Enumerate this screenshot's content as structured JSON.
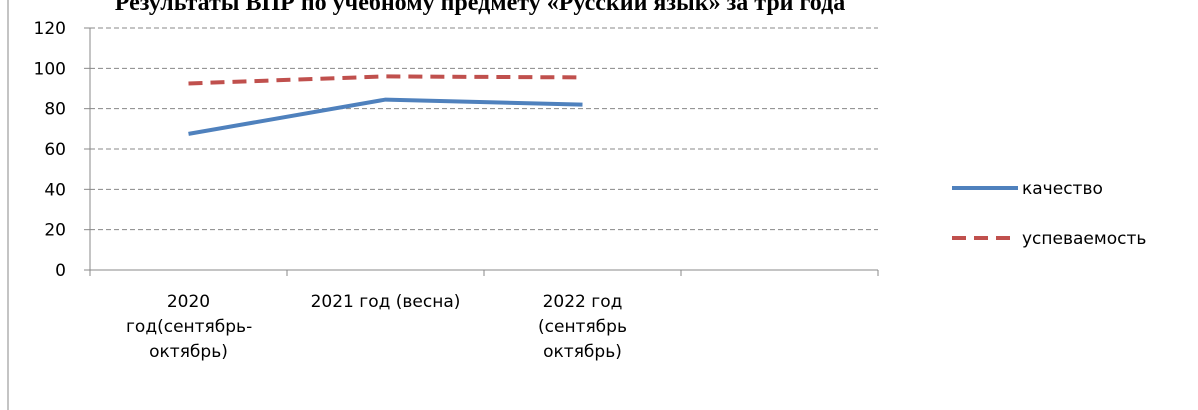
{
  "chart_data": {
    "type": "line",
    "title": "Результаты ВПР по учебному предмету «Русский язык» за три года",
    "categories": [
      "2020 год(сентябрь-октябрь)",
      "2021 год (весна)",
      "2022 год (сентябрь октябрь)",
      null
    ],
    "series": [
      {
        "name": "качество",
        "color": "#4f81bd",
        "values": [
          67.5,
          84.5,
          82,
          null
        ]
      },
      {
        "name": "успеваемость",
        "color": "#c0504d",
        "values": [
          92.5,
          96,
          95.5,
          null
        ]
      }
    ],
    "ylim": [
      0,
      120
    ],
    "yticks": [
      0,
      20,
      40,
      60,
      80,
      100,
      120
    ],
    "grid": true,
    "legend": "right"
  }
}
